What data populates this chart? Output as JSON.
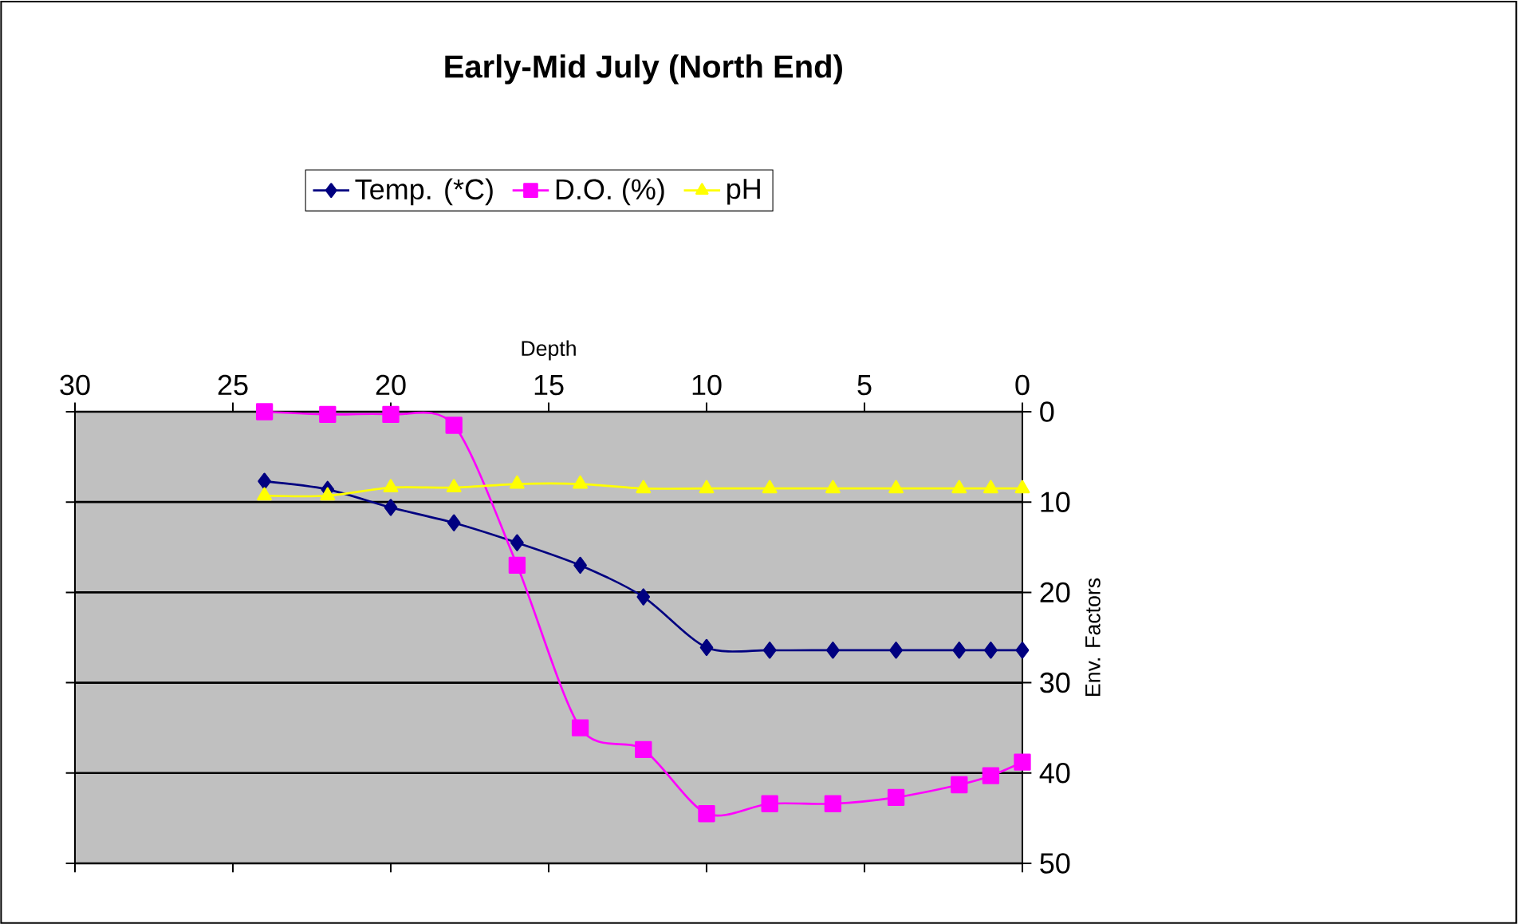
{
  "chart_data": {
    "type": "line",
    "title": "Early-Mid July (North End)",
    "xlabel": "Depth",
    "ylabel": "Env. Factors",
    "x": [
      24,
      22,
      20,
      18,
      16,
      14,
      12,
      10,
      8,
      6,
      4,
      2,
      1,
      0
    ],
    "series": [
      {
        "name": "Temp. (*C)",
        "color": "#000080",
        "marker": "diamond",
        "values": [
          7.7,
          8.6,
          10.6,
          12.3,
          14.5,
          17.0,
          20.5,
          26.1,
          26.4,
          26.4,
          26.4,
          26.4,
          26.4,
          26.4
        ]
      },
      {
        "name": "D.O. (%)",
        "color": "#ff00ff",
        "marker": "square",
        "values": [
          0,
          0.3,
          0.3,
          1.5,
          17.0,
          35.0,
          37.4,
          44.5,
          43.4,
          43.4,
          42.7,
          41.3,
          40.3,
          38.8
        ]
      },
      {
        "name": "pH",
        "color": "#ffff00",
        "marker": "triangle",
        "values": [
          9.3,
          9.3,
          8.4,
          8.4,
          8.0,
          8.0,
          8.5,
          8.5,
          8.5,
          8.5,
          8.5,
          8.5,
          8.5,
          8.5
        ]
      }
    ],
    "xlim": [
      30,
      0
    ],
    "xticks": [
      30,
      25,
      20,
      15,
      10,
      5,
      0
    ],
    "ylim": [
      50,
      0
    ],
    "yticks": [
      0,
      10,
      20,
      30,
      40,
      50
    ],
    "grid": "y",
    "legend": "top",
    "line_style": "solid"
  }
}
